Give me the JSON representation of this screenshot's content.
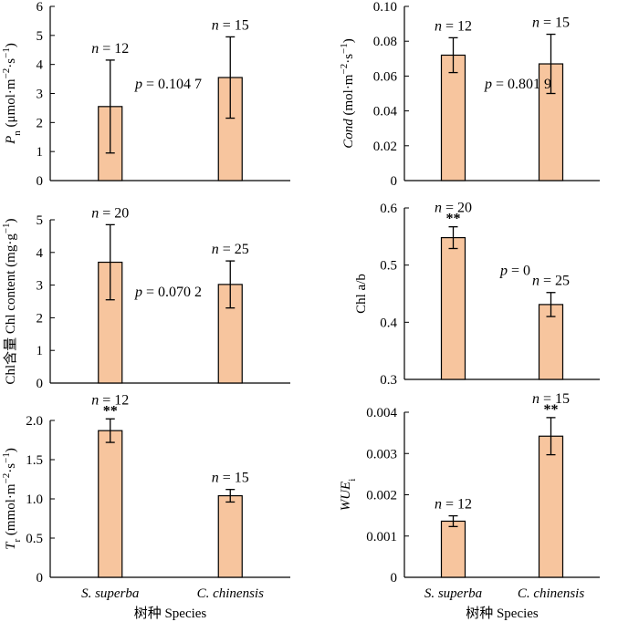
{
  "chart_data": [
    {
      "type": "bar",
      "panel": "top-left",
      "categories": [
        "S. superba",
        "C. chinensis"
      ],
      "ylabel": "P<sub>n</sub> (μmol·m<sup>−2</sup>·s<sup>−1</sup>)",
      "ylim": [
        0,
        6
      ],
      "yticks": [
        0,
        1,
        2,
        3,
        4,
        5,
        6
      ],
      "values": [
        2.55,
        3.55
      ],
      "errors": [
        1.6,
        1.4
      ],
      "n_labels": [
        "n = 12",
        "n = 15"
      ],
      "significance": [
        "",
        ""
      ],
      "p_label": "p = 0.104 7"
    },
    {
      "type": "bar",
      "panel": "top-right",
      "categories": [
        "S. superba",
        "C. chinensis"
      ],
      "ylabel": "Cond (mol·m<sup>−2</sup>·s<sup>−1</sup>)",
      "ylim": [
        0,
        0.1
      ],
      "yticks": [
        "0",
        "0.02",
        "0.04",
        "0.06",
        "0.08",
        "0.10"
      ],
      "values": [
        0.072,
        0.067
      ],
      "errors": [
        0.01,
        0.017
      ],
      "n_labels": [
        "n = 12",
        "n = 15"
      ],
      "significance": [
        "",
        ""
      ],
      "p_label": "p = 0.801 9"
    },
    {
      "type": "bar",
      "panel": "middle-left",
      "categories": [
        "S. superba",
        "C. chinensis"
      ],
      "ylabel": "Chl含量 Chl content (mg·g<sup>−1</sup>)",
      "ylim": [
        0,
        5
      ],
      "yticks": [
        0,
        1,
        2,
        3,
        4,
        5
      ],
      "values": [
        3.7,
        3.02
      ],
      "errors": [
        1.15,
        0.72
      ],
      "n_labels": [
        "n = 20",
        "n = 25"
      ],
      "significance": [
        "",
        ""
      ],
      "p_label": "p = 0.070 2"
    },
    {
      "type": "bar",
      "panel": "middle-right",
      "categories": [
        "S. superba",
        "C. chinensis"
      ],
      "ylabel": "Chl a/b",
      "ylim": [
        0.3,
        0.6
      ],
      "yticks": [
        "0.3",
        "0.4",
        "0.5",
        "0.6"
      ],
      "values": [
        0.548,
        0.431
      ],
      "errors": [
        0.019,
        0.021
      ],
      "n_labels": [
        "n = 20",
        "n = 25"
      ],
      "significance": [
        "**",
        ""
      ],
      "p_label": "p = 0"
    },
    {
      "type": "bar",
      "panel": "bottom-left",
      "categories": [
        "S. superba",
        "C. chinensis"
      ],
      "ylabel": "T<sub>r</sub> (mmol·m<sup>−2</sup>·s<sup>−1</sup>)",
      "ylim": [
        0,
        2
      ],
      "yticks": [
        "0",
        "0.5",
        "1.0",
        "1.5",
        "2.0"
      ],
      "values": [
        1.87,
        1.04
      ],
      "errors": [
        0.15,
        0.08
      ],
      "n_labels": [
        "n = 12",
        "n = 15"
      ],
      "significance": [
        "**",
        ""
      ],
      "p_label": "",
      "xlabel": "树种 Species"
    },
    {
      "type": "bar",
      "panel": "bottom-right",
      "categories": [
        "S. superba",
        "C. chinensis"
      ],
      "ylabel": "WUE<sub>i</sub>",
      "ylim": [
        0,
        0.004
      ],
      "yticks": [
        "0",
        "0.001",
        "0.002",
        "0.003",
        "0.004"
      ],
      "values": [
        0.00136,
        0.00342
      ],
      "errors": [
        0.00013,
        0.00045
      ],
      "n_labels": [
        "n = 12",
        "n = 15"
      ],
      "significance": [
        "",
        "**"
      ],
      "p_label": "",
      "xlabel": "树种 Species"
    }
  ],
  "colors": {
    "bar_fill": "#f7c59e",
    "bar_stroke": "#000000",
    "axis": "#000000"
  }
}
